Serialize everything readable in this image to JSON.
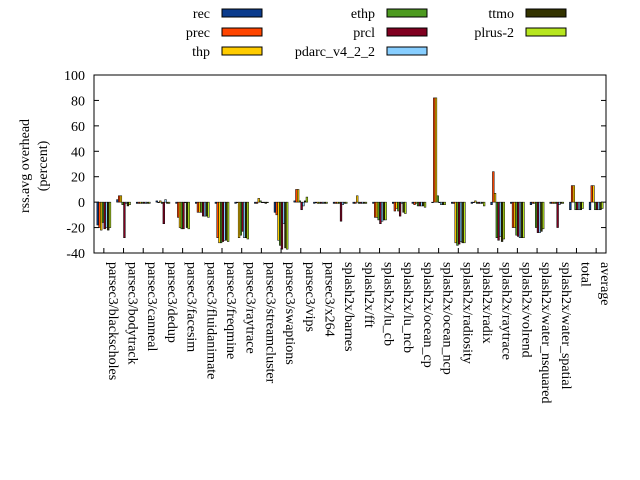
{
  "chart_data": {
    "type": "bar",
    "xlabel": "",
    "ylabel": "rss.avg overhead",
    "ylabel_unit": "(percent)",
    "ylim": [
      -40,
      100
    ],
    "yticks": [
      -40,
      -20,
      0,
      20,
      40,
      60,
      80,
      100
    ],
    "grid": false,
    "legend_position": "top, outside plot (3 columns)",
    "categories": [
      "parsec3/blackscholes",
      "parsec3/bodytrack",
      "parsec3/canneal",
      "parsec3/dedup",
      "parsec3/facesim",
      "parsec3/fluidanimate",
      "parsec3/freqmine",
      "parsec3/raytrace",
      "parsec3/streamcluster",
      "parsec3/swaptions",
      "parsec3/vips",
      "parsec3/x264",
      "splash2x/barnes",
      "splash2x/fft",
      "splash2x/lu_cb",
      "splash2x/lu_ncb",
      "splash2x/ocean_cp",
      "splash2x/ocean_ncp",
      "splash2x/radiosity",
      "splash2x/radix",
      "splash2x/raytrace",
      "splash2x/volrend",
      "splash2x/water_nsquared",
      "splash2x/water_spatial",
      "total",
      "average"
    ],
    "series": [
      {
        "name": "rec",
        "color": "#0b3b8c",
        "values": [
          -18,
          2,
          -1,
          1,
          -1,
          -1,
          -1,
          -1,
          -1,
          -8,
          1,
          -1,
          -1,
          -1,
          -1,
          -1,
          -1,
          0,
          -1,
          -1,
          -2,
          -1,
          -2,
          -1,
          -6,
          -6
        ]
      },
      {
        "name": "prec",
        "color": "#ff4500",
        "values": [
          -20,
          5,
          -1,
          0,
          -12,
          -8,
          -28,
          0,
          -1,
          -10,
          10,
          0,
          -1,
          -1,
          -12,
          -7,
          -2,
          82,
          -1,
          0,
          24,
          -20,
          -1,
          -1,
          13,
          13
        ]
      },
      {
        "name": "thp",
        "color": "#ffcc00",
        "values": [
          -22,
          5,
          -1,
          1,
          -20,
          -8,
          -32,
          -28,
          3,
          -30,
          10,
          -1,
          -1,
          5,
          -12,
          -5,
          -1,
          82,
          -32,
          1,
          7,
          -20,
          -1,
          -1,
          13,
          13
        ]
      },
      {
        "name": "ethp",
        "color": "#4d9a20",
        "values": [
          -16,
          -2,
          -1,
          -1,
          -21,
          -8,
          -32,
          -26,
          1,
          -34,
          1,
          -1,
          -1,
          -1,
          -14,
          -7,
          -3,
          5,
          -34,
          -1,
          -28,
          -26,
          -20,
          -1,
          -6,
          -6
        ]
      },
      {
        "name": "prcl",
        "color": "#800020",
        "values": [
          -21,
          -28,
          -1,
          -17,
          -21,
          -11,
          -31,
          -23,
          0,
          -37,
          -6,
          -1,
          -15,
          -1,
          -17,
          -11,
          -3,
          0,
          -33,
          -1,
          -30,
          -27,
          -24,
          -20,
          -6,
          -6
        ]
      },
      {
        "name": "pdarc_v4_2_2",
        "color": "#87ceff",
        "values": [
          -20,
          -1,
          -1,
          2,
          0,
          -11,
          -30,
          -28,
          0,
          -17,
          -3,
          -1,
          -2,
          -1,
          -15,
          -1,
          -3,
          -2,
          -31,
          -1,
          -27,
          -28,
          -24,
          -2,
          -6,
          -6
        ]
      },
      {
        "name": "ttmo",
        "color": "#333300",
        "values": [
          -22,
          -3,
          -1,
          -1,
          -20,
          -11,
          -30,
          -28,
          -1,
          -36,
          1,
          -1,
          -1,
          -1,
          -14,
          -8,
          -3,
          -2,
          -32,
          -1,
          -31,
          -28,
          -23,
          -1,
          -6,
          -6
        ]
      },
      {
        "name": "plrus-2",
        "color": "#b7e61f",
        "values": [
          -20,
          -2,
          -1,
          -1,
          -21,
          -12,
          -31,
          -29,
          0,
          -37,
          4,
          -1,
          -1,
          -1,
          -14,
          -9,
          -4,
          -2,
          -32,
          -3,
          -29,
          -28,
          -21,
          -1,
          -5,
          -5
        ]
      }
    ]
  }
}
